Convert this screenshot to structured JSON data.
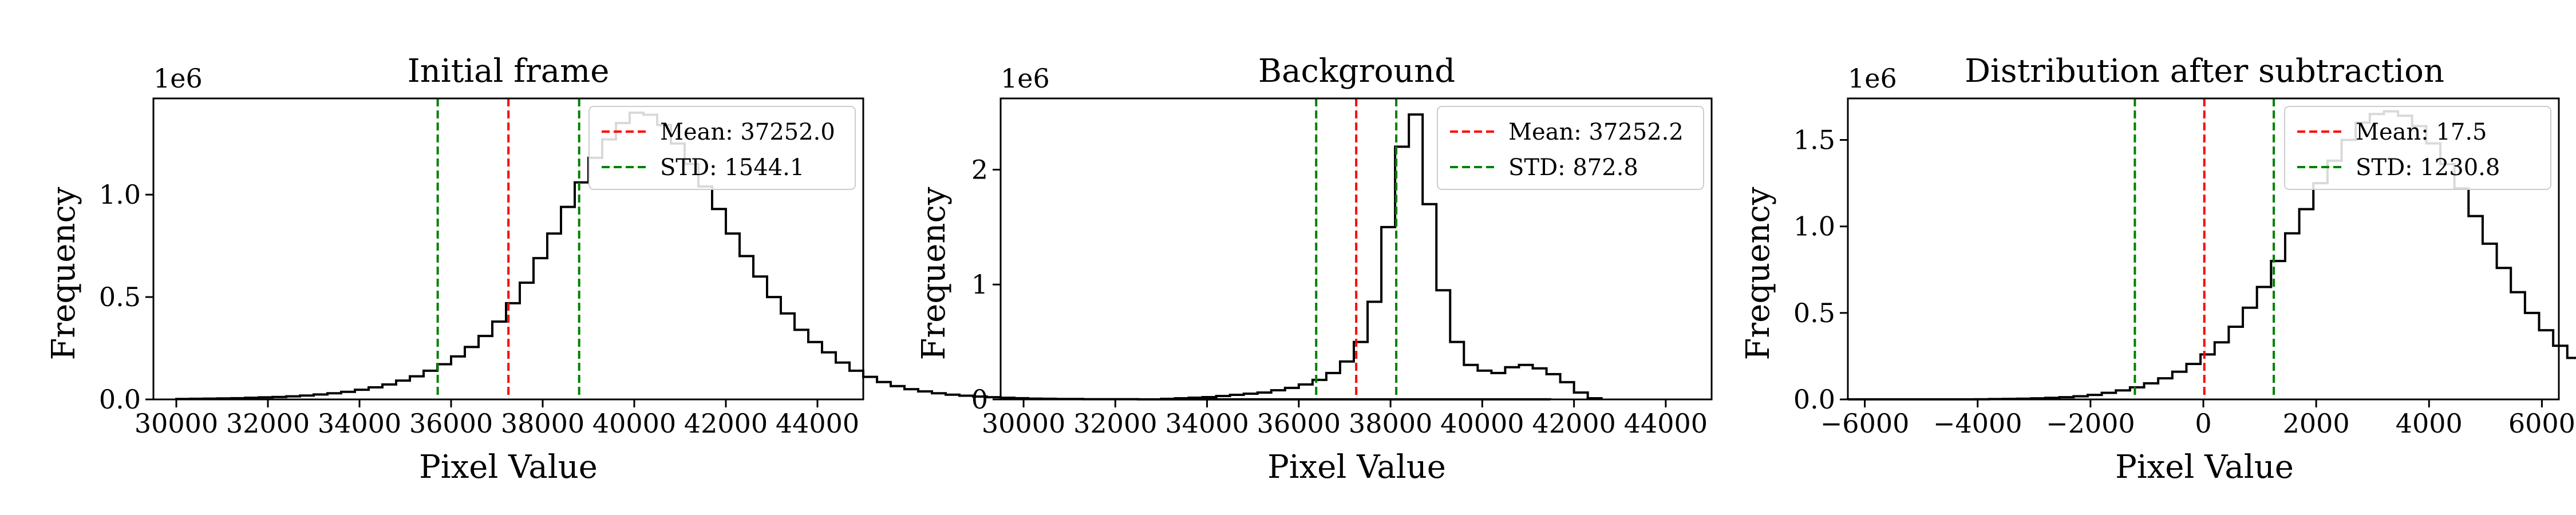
{
  "chart_data": [
    {
      "type": "histogram",
      "title": "Initial frame",
      "xlabel": "Pixel Value",
      "ylabel": "Frequency",
      "y_multiplier": "1e6",
      "xlim": [
        29500,
        45000
      ],
      "ylim": [
        0,
        1.47
      ],
      "xticks": [
        30000,
        32000,
        34000,
        36000,
        38000,
        40000,
        42000,
        44000
      ],
      "xtick_labels": [
        "30000",
        "32000",
        "34000",
        "36000",
        "38000",
        "40000",
        "42000",
        "44000"
      ],
      "yticks": [
        0,
        0.5,
        1.0
      ],
      "ytick_labels": [
        "0.0",
        "0.5",
        "1.0"
      ],
      "bins_start": 30000,
      "bins_width": 300,
      "counts": [
        0.002,
        0.003,
        0.004,
        0.005,
        0.006,
        0.008,
        0.01,
        0.012,
        0.015,
        0.019,
        0.024,
        0.03,
        0.037,
        0.047,
        0.059,
        0.073,
        0.092,
        0.113,
        0.14,
        0.172,
        0.21,
        0.256,
        0.31,
        0.38,
        0.47,
        0.57,
        0.69,
        0.81,
        0.94,
        1.06,
        1.18,
        1.27,
        1.35,
        1.4,
        1.39,
        1.34,
        1.25,
        1.15,
        1.04,
        0.93,
        0.81,
        0.7,
        0.6,
        0.5,
        0.42,
        0.34,
        0.28,
        0.23,
        0.18,
        0.14,
        0.11,
        0.085,
        0.065,
        0.05,
        0.039,
        0.03,
        0.023,
        0.018,
        0.014,
        0.011,
        0.008,
        0.006,
        0.004,
        0.003,
        0.002,
        0.002,
        0.001,
        0.001,
        0.001,
        0.001,
        0.0005,
        0.0005,
        0.0005,
        0.0005,
        0.0005,
        0.0005,
        0.0005,
        0.0005,
        0.0005,
        0.0005,
        0.0005,
        0.0005,
        0.0005,
        0.0005,
        0.0005,
        0.0005,
        0.0005,
        0.0005,
        0.0005,
        0.0005,
        0.0005,
        0.0005,
        0.0005,
        0.0005,
        0.0005,
        0.0005,
        0.0005,
        0.0005,
        0.0005,
        0.0005
      ],
      "mean": 37252.0,
      "std": 1544.1,
      "legend": [
        "Mean: 37252.0",
        "STD: 1544.1"
      ],
      "legend_loc": "upper right",
      "colors": {
        "hist": "#000000",
        "mean": "#ff0000",
        "std": "#008000"
      }
    },
    {
      "type": "histogram",
      "title": "Background",
      "xlabel": "Pixel Value",
      "ylabel": "Frequency",
      "y_multiplier": "1e6",
      "xlim": [
        29500,
        45000
      ],
      "ylim": [
        0,
        2.62
      ],
      "xticks": [
        30000,
        32000,
        34000,
        36000,
        38000,
        40000,
        42000,
        44000
      ],
      "xtick_labels": [
        "30000",
        "32000",
        "34000",
        "36000",
        "38000",
        "40000",
        "42000",
        "44000"
      ],
      "yticks": [
        0,
        1,
        2
      ],
      "ytick_labels": [
        "0",
        "1",
        "2"
      ],
      "bins_start": 33000,
      "bins_width": 300,
      "counts": [
        0.005,
        0.01,
        0.015,
        0.02,
        0.03,
        0.04,
        0.05,
        0.06,
        0.08,
        0.1,
        0.13,
        0.17,
        0.23,
        0.33,
        0.5,
        0.85,
        1.5,
        2.2,
        2.48,
        1.7,
        0.95,
        0.5,
        0.3,
        0.25,
        0.23,
        0.28,
        0.3,
        0.27,
        0.22,
        0.15,
        0.06,
        0.01
      ],
      "mean": 37252.2,
      "std": 872.8,
      "legend": [
        "Mean: 37252.2",
        "STD: 872.8"
      ],
      "legend_loc": "upper right",
      "colors": {
        "hist": "#000000",
        "mean": "#ff0000",
        "std": "#008000"
      }
    },
    {
      "type": "histogram",
      "title": "Distribution after subtraction",
      "xlabel": "Pixel Value",
      "ylabel": "Frequency",
      "y_multiplier": "1e6",
      "xlim": [
        -6300,
        6300
      ],
      "ylim": [
        0,
        1.74
      ],
      "xticks": [
        -6000,
        -4000,
        -2000,
        0,
        2000,
        4000,
        6000
      ],
      "xtick_labels": [
        "−6000",
        "−4000",
        "−2000",
        "0",
        "2000",
        "4000",
        "6000"
      ],
      "yticks": [
        0,
        0.5,
        1.0,
        1.5
      ],
      "ytick_labels": [
        "0.0",
        "0.5",
        "1.0",
        "1.5"
      ],
      "bins_start": -6300,
      "bins_width": 250,
      "counts": [
        0.0005,
        0.0005,
        0.0005,
        0.0005,
        0.0005,
        0.0005,
        0.0005,
        0.0005,
        0.0005,
        0.001,
        0.002,
        0.003,
        0.004,
        0.006,
        0.009,
        0.013,
        0.018,
        0.026,
        0.038,
        0.052,
        0.07,
        0.093,
        0.122,
        0.16,
        0.205,
        0.26,
        0.33,
        0.42,
        0.53,
        0.65,
        0.8,
        0.96,
        1.1,
        1.25,
        1.38,
        1.5,
        1.6,
        1.65,
        1.665,
        1.64,
        1.58,
        1.48,
        1.36,
        1.22,
        1.06,
        0.9,
        0.76,
        0.62,
        0.5,
        0.4,
        0.31,
        0.24,
        0.18,
        0.135,
        0.1,
        0.075,
        0.055,
        0.04,
        0.03,
        0.022,
        0.016,
        0.011,
        0.008,
        0.006,
        0.004,
        0.003,
        0.002,
        0.001,
        0.001,
        0.001,
        0.0005,
        0.0005,
        0.0005,
        0.0005,
        0.0005,
        0.0005,
        0.0005,
        0.0005,
        0.0005,
        0.0005
      ],
      "mean": 17.5,
      "std": 1230.8,
      "legend": [
        "Mean: 17.5",
        "STD: 1230.8"
      ],
      "legend_loc": "upper right",
      "colors": {
        "hist": "#000000",
        "mean": "#ff0000",
        "std": "#008000"
      }
    }
  ]
}
